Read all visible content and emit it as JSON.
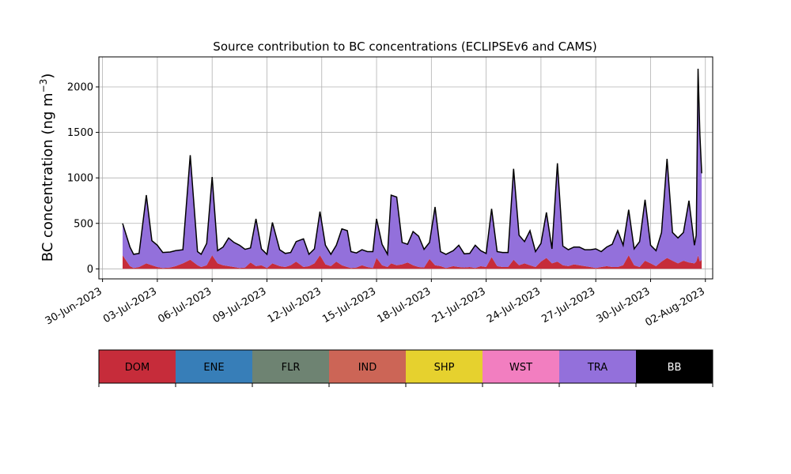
{
  "chart_data": {
    "type": "area",
    "title": "Source contribution to BC concentrations (ECLIPSEv6 and CAMS)",
    "ylabel_main": "BC concentration (ng m",
    "ylabel_sup": "−3",
    "ylabel_close": ")",
    "xlabel": "",
    "ylim": [
      -110,
      2330
    ],
    "xlim_days": [
      -0.2,
      33.4
    ],
    "x_origin_label": "30-Jun-2023",
    "grid": true,
    "yticks": [
      0,
      500,
      1000,
      1500,
      2000
    ],
    "ytick_labels": [
      "0",
      "500",
      "1000",
      "1500",
      "2000"
    ],
    "xticks": [
      0,
      3,
      6,
      9,
      12,
      15,
      18,
      21,
      24,
      27,
      30,
      33
    ],
    "xtick_labels": [
      "30-Jun-2023",
      "03-Jul-2023",
      "06-Jul-2023",
      "09-Jul-2023",
      "12-Jul-2023",
      "15-Jul-2023",
      "18-Jul-2023",
      "21-Jul-2023",
      "24-Jul-2023",
      "27-Jul-2023",
      "30-Jul-2023",
      "02-Aug-2023"
    ],
    "legend_position": "below chart",
    "legend": [
      {
        "label": "DOM",
        "color": "#c62c3a",
        "text_color": "#000000"
      },
      {
        "label": "ENE",
        "color": "#377eb8",
        "text_color": "#000000"
      },
      {
        "label": "FLR",
        "color": "#6e8372",
        "text_color": "#000000"
      },
      {
        "label": "IND",
        "color": "#cc6556",
        "text_color": "#000000"
      },
      {
        "label": "SHP",
        "color": "#e6d12e",
        "text_color": "#000000"
      },
      {
        "label": "WST",
        "color": "#f27ec0",
        "text_color": "#000000"
      },
      {
        "label": "TRA",
        "color": "#9370db",
        "text_color": "#000000"
      },
      {
        "label": "BB",
        "color": "#000000",
        "text_color": "#ffffff"
      }
    ],
    "series_days_since_origin": [
      1.1,
      1.5,
      1.7,
      2.0,
      2.4,
      2.7,
      3.0,
      3.3,
      3.7,
      4.0,
      4.4,
      4.8,
      5.2,
      5.4,
      5.7,
      6.0,
      6.3,
      6.6,
      6.9,
      7.2,
      7.5,
      7.8,
      8.1,
      8.4,
      8.7,
      9.0,
      9.3,
      9.7,
      10.0,
      10.3,
      10.6,
      11.0,
      11.3,
      11.6,
      11.9,
      12.2,
      12.5,
      12.8,
      13.1,
      13.4,
      13.6,
      13.9,
      14.2,
      14.5,
      14.8,
      15.0,
      15.3,
      15.6,
      15.8,
      16.1,
      16.4,
      16.7,
      17.0,
      17.3,
      17.6,
      17.9,
      18.2,
      18.5,
      18.8,
      19.2,
      19.5,
      19.8,
      20.1,
      20.4,
      20.7,
      21.0,
      21.3,
      21.6,
      21.9,
      22.2,
      22.5,
      22.8,
      23.1,
      23.4,
      23.7,
      24.0,
      24.3,
      24.6,
      24.9,
      25.2,
      25.5,
      25.8,
      26.1,
      26.4,
      26.7,
      27.0,
      27.3,
      27.6,
      27.9,
      28.2,
      28.5,
      28.8,
      29.1,
      29.4,
      29.7,
      30.0,
      30.3,
      30.6,
      30.9,
      31.2,
      31.5,
      31.8,
      32.1,
      32.4,
      32.5,
      32.6,
      32.7,
      32.8
    ],
    "series": [
      {
        "name": "DOM",
        "values": [
          150,
          30,
          10,
          20,
          60,
          40,
          20,
          10,
          15,
          30,
          60,
          100,
          40,
          20,
          40,
          150,
          60,
          40,
          30,
          20,
          10,
          15,
          70,
          30,
          40,
          10,
          60,
          30,
          20,
          40,
          80,
          20,
          30,
          60,
          150,
          50,
          30,
          80,
          40,
          20,
          10,
          15,
          40,
          20,
          10,
          120,
          40,
          20,
          60,
          40,
          50,
          70,
          40,
          20,
          15,
          110,
          40,
          30,
          10,
          30,
          20,
          15,
          20,
          10,
          30,
          20,
          130,
          30,
          20,
          20,
          100,
          40,
          60,
          40,
          20,
          80,
          120,
          60,
          80,
          40,
          30,
          50,
          40,
          30,
          20,
          10,
          20,
          30,
          20,
          20,
          40,
          150,
          40,
          20,
          90,
          60,
          30,
          80,
          120,
          90,
          60,
          90,
          70,
          60,
          80,
          150,
          80,
          100
        ]
      },
      {
        "name": "TRA",
        "values": [
          350,
          210,
          150,
          150,
          750,
          270,
          240,
          170,
          170,
          170,
          150,
          1150,
          150,
          140,
          240,
          860,
          140,
          200,
          310,
          270,
          250,
          200,
          160,
          520,
          180,
          150,
          450,
          180,
          150,
          140,
          220,
          310,
          130,
          160,
          480,
          210,
          130,
          180,
          400,
          400,
          180,
          160,
          170,
          170,
          180,
          430,
          230,
          140,
          750,
          750,
          240,
          200,
          370,
          340,
          200,
          180,
          640,
          160,
          150,
          170,
          240,
          150,
          150,
          250,
          170,
          150,
          530,
          160,
          160,
          160,
          1000,
          330,
          240,
          380,
          170,
          200,
          500,
          160,
          1080,
          210,
          180,
          190,
          200,
          180,
          190,
          210,
          170,
          210,
          250,
          400,
          220,
          500,
          180,
          280,
          670,
          200,
          170,
          320,
          1090,
          310,
          280,
          310,
          680,
          200,
          290,
          2050,
          1400,
          950
        ]
      }
    ]
  }
}
